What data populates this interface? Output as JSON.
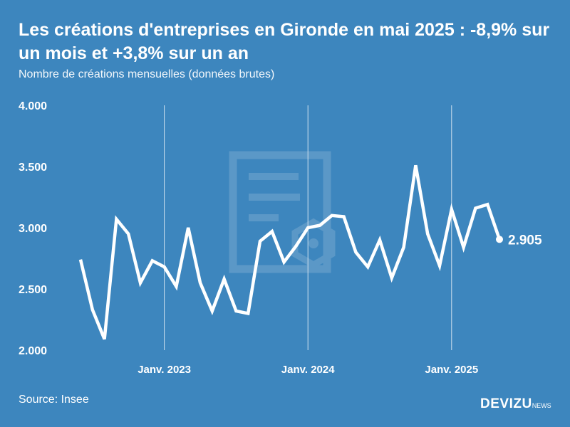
{
  "title": "Les créations d'entreprises en Gironde en mai 2025 : -8,9% sur un mois et +3,8% sur un an",
  "subtitle": "Nombre de créations mensuelles (données brutes)",
  "source": "Source: Insee",
  "logo": {
    "brand": "DEVIZU",
    "suffix": "NEWS"
  },
  "colors": {
    "background": "#3d86be",
    "line": "#ffffff",
    "watermark": "#5f9bc9"
  },
  "watermark_icon": "document-gear-icon",
  "chart_data": {
    "type": "line",
    "title": "Les créations d'entreprises en Gironde en mai 2025 : -8,9% sur un mois et +3,8% sur un an",
    "ylabel": "",
    "xlabel": "",
    "ylim": [
      2000,
      4000
    ],
    "y_ticks": [
      4000,
      3500,
      3000,
      2500,
      2000
    ],
    "y_tick_labels": [
      "4.000",
      "3.500",
      "3.000",
      "2.500",
      "2.000"
    ],
    "x_ticks": [
      {
        "index": 7,
        "label": "Janv. 2023"
      },
      {
        "index": 19,
        "label": "Janv. 2024"
      },
      {
        "index": 31,
        "label": "Janv. 2025"
      }
    ],
    "x_start": "2022-06",
    "x_end": "2025-05",
    "grid": "vertical lines at January",
    "series": [
      {
        "values": [
          2740,
          2330,
          2090,
          3070,
          2950,
          2550,
          2730,
          2680,
          2520,
          3000,
          2550,
          2320,
          2580,
          2320,
          2300,
          2890,
          2970,
          2720,
          2850,
          3000,
          3020,
          3100,
          3090,
          2800,
          2680,
          2900,
          2590,
          2840,
          3510,
          2950,
          2690,
          3150,
          2840,
          3160,
          3190,
          2905
        ]
      }
    ],
    "last_value_label": "2.905"
  }
}
